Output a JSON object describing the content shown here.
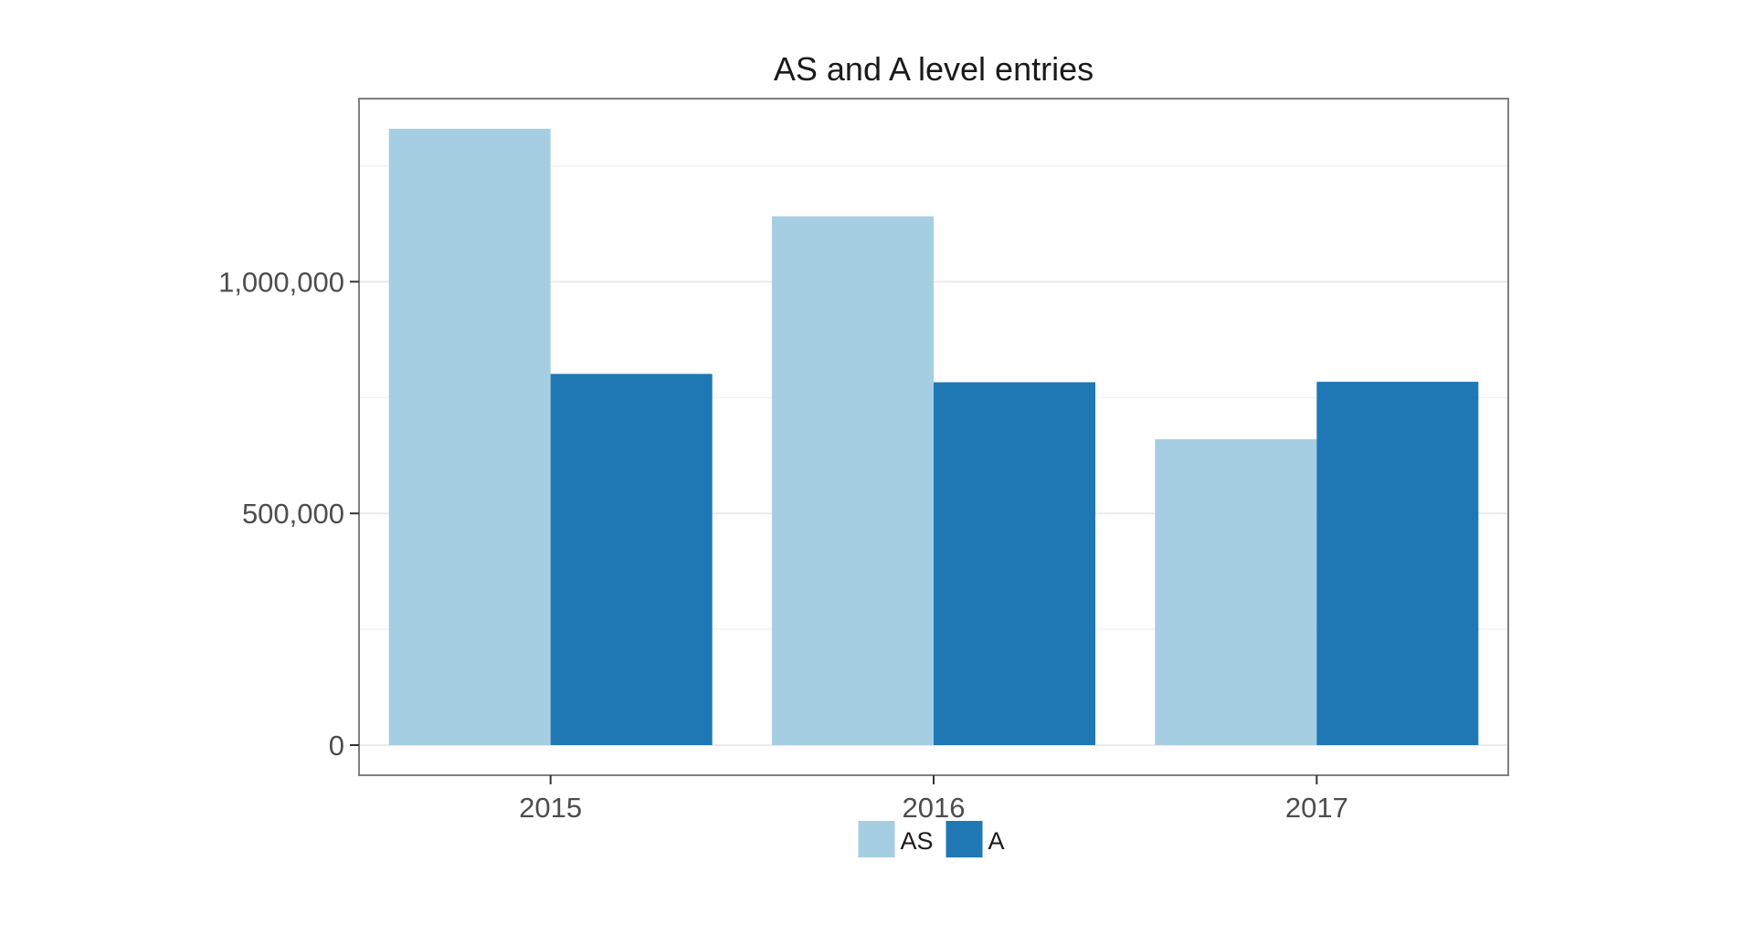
{
  "chart_data": {
    "type": "bar",
    "title": "AS and A level entries",
    "xlabel": "",
    "ylabel": "",
    "categories": [
      "2015",
      "2016",
      "2017"
    ],
    "series": [
      {
        "name": "AS",
        "color": "#a6cee3",
        "values": [
          1330000,
          1141000,
          660000
        ]
      },
      {
        "name": "A",
        "color": "#1f78b4",
        "values": [
          801000,
          783000,
          784000
        ]
      }
    ],
    "ylim": [
      -65000,
      1395000
    ],
    "yticks": [
      0,
      500000,
      1000000
    ],
    "ytick_labels": [
      "0",
      "500,000",
      "1,000,000"
    ],
    "grid": true,
    "legend_position": "bottom"
  }
}
